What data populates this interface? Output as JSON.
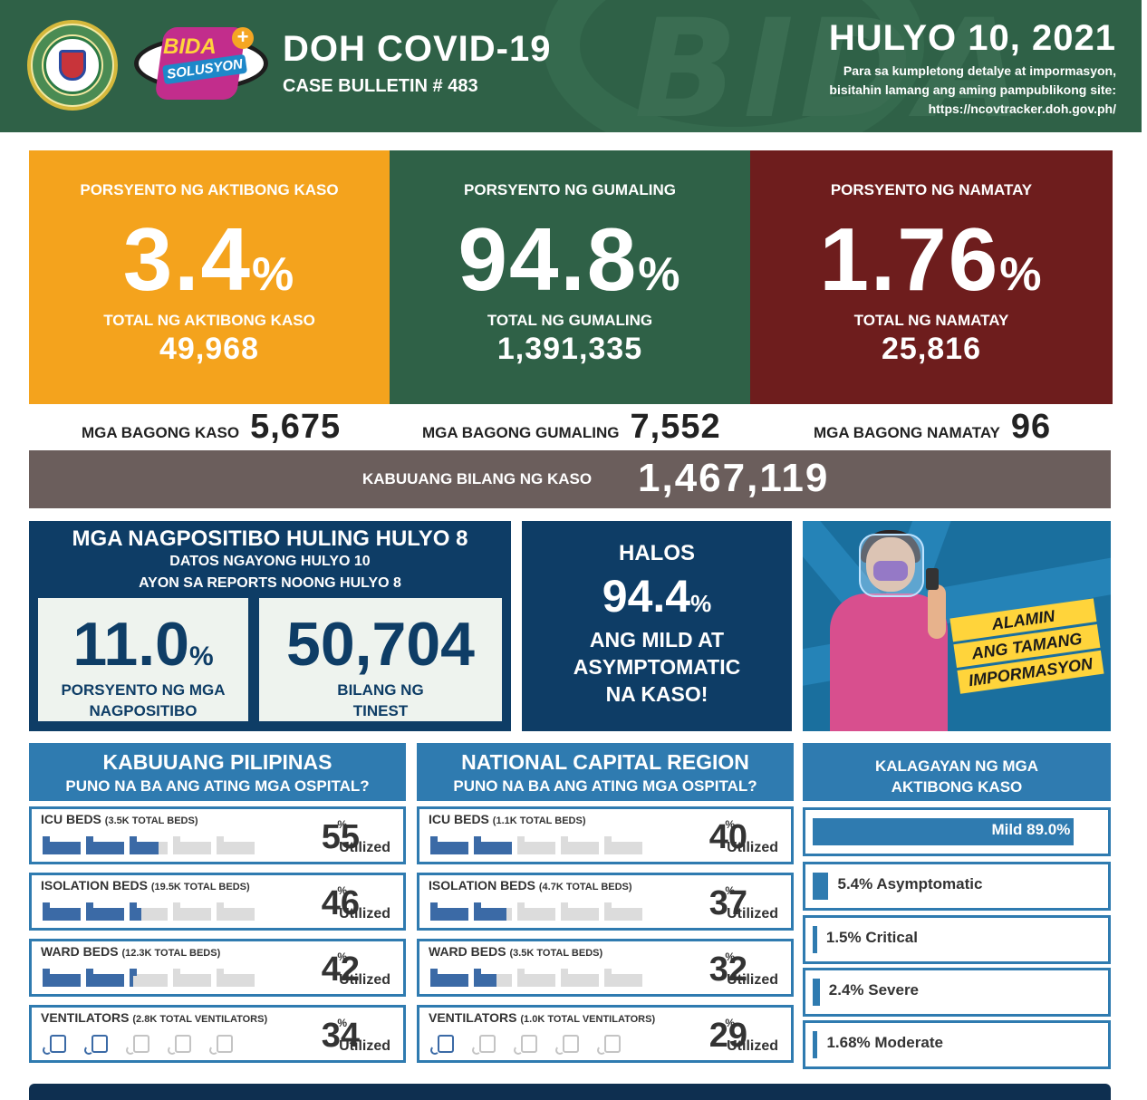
{
  "header": {
    "title": "DOH COVID-19",
    "bulletin": "CASE BULLETIN # 483",
    "date": "HULYO 10, 2021",
    "note_line1": "Para sa kumpletong detalye at impormasyon,",
    "note_line2": "bisitahin lamang ang aming pampublikong site:",
    "note_url": "https://ncovtracker.doh.gov.ph/",
    "logo_bida": "BIDA",
    "logo_solusyon": "SOLUSYON",
    "logo_plus": "+"
  },
  "active": {
    "label": "PORSYENTO NG AKTIBONG KASO",
    "percent": "3.4",
    "percent_sign": "%",
    "total_label": "TOTAL NG AKTIBONG KASO",
    "total": "49,968",
    "color": "#f4a31d"
  },
  "recovered": {
    "label": "PORSYENTO NG GUMALING",
    "percent": "94.8",
    "percent_sign": "%",
    "total_label": "TOTAL NG GUMALING",
    "total": "1,391,335",
    "color": "#2f6147"
  },
  "deaths": {
    "label": "PORSYENTO NG NAMATAY",
    "percent": "1.76",
    "percent_sign": "%",
    "total_label": "TOTAL NG NAMATAY",
    "total": "25,816",
    "color": "#6e1d1d"
  },
  "new_cases": {
    "label": "MGA BAGONG KASO",
    "value": "5,675"
  },
  "new_recoveries": {
    "label": "MGA BAGONG GUMALING",
    "value": "7,552"
  },
  "new_deaths": {
    "label": "MGA BAGONG NAMATAY",
    "value": "96"
  },
  "total_cases": {
    "label": "KABUUANG BILANG NG KASO",
    "value": "1,467,119"
  },
  "positivity": {
    "title": "MGA NAGPOSITIBO HULING HULYO 8",
    "sub1": "DATOS NGAYONG HULYO 10",
    "sub2": "AYON SA REPORTS NOONG HULYO 8",
    "rate": "11.0",
    "rate_sign": "%",
    "rate_label_1": "PORSYENTO NG MGA",
    "rate_label_2": "NAGPOSITIBO",
    "tested": "50,704",
    "tested_label_1": "BILANG NG",
    "tested_label_2": "TINEST"
  },
  "mild": {
    "halos": "HALOS",
    "percent": "94.4",
    "percent_sign": "%",
    "line1": "ANG MILD AT",
    "line2": "ASYMPTOMATIC",
    "line3": "NA KASO!"
  },
  "promo": {
    "line1": "ALAMIN",
    "line2": "ANG TAMANG",
    "line3": "IMPORMASYON"
  },
  "hospitals_ph": {
    "title": "KABUUANG PILIPINAS",
    "subtitle": "PUNO NA BA ANG ATING MGA OSPITAL?",
    "rows": [
      {
        "name": "ICU BEDS",
        "total": "(3.5K TOTAL BEDS)",
        "percent": "55",
        "utilization": 55
      },
      {
        "name": "ISOLATION BEDS",
        "total": "(19.5K TOTAL BEDS)",
        "percent": "46",
        "utilization": 46
      },
      {
        "name": "WARD BEDS",
        "total": "(12.3K TOTAL BEDS)",
        "percent": "42",
        "utilization": 42
      },
      {
        "name": "VENTILATORS",
        "total": "(2.8K TOTAL VENTILATORS)",
        "percent": "34",
        "utilization": 34
      }
    ]
  },
  "hospitals_ncr": {
    "title": "NATIONAL CAPITAL REGION",
    "subtitle": "PUNO NA BA ANG ATING MGA OSPITAL?",
    "rows": [
      {
        "name": "ICU BEDS",
        "total": "(1.1K TOTAL BEDS)",
        "percent": "40",
        "utilization": 40
      },
      {
        "name": "ISOLATION BEDS",
        "total": "(4.7K TOTAL BEDS)",
        "percent": "37",
        "utilization": 37
      },
      {
        "name": "WARD BEDS",
        "total": "(3.5K TOTAL BEDS)",
        "percent": "32",
        "utilization": 32
      },
      {
        "name": "VENTILATORS",
        "total": "(1.0K TOTAL VENTILATORS)",
        "percent": "29",
        "utilization": 29
      }
    ]
  },
  "percent_symbol": "%",
  "utilized_label": "Utilized",
  "status": {
    "title_line1": "KALAGAYAN NG MGA",
    "title_line2": "AKTIBONG KASO",
    "items": [
      {
        "label": "Mild 89.0%",
        "value": 89.0
      },
      {
        "label": "5.4% Asymptomatic",
        "value": 5.4
      },
      {
        "label": "1.5% Critical",
        "value": 1.5
      },
      {
        "label": "2.4% Severe",
        "value": 2.4
      },
      {
        "label": "1.68% Moderate",
        "value": 1.68
      }
    ]
  },
  "colors": {
    "header_green": "#2f6147",
    "navy": "#0e3d66",
    "section_blue": "#2f7bb0",
    "bar_fill": "#3b6aa6",
    "bar_empty": "#dcdcdc",
    "total_bar": "#6b5e5c"
  }
}
